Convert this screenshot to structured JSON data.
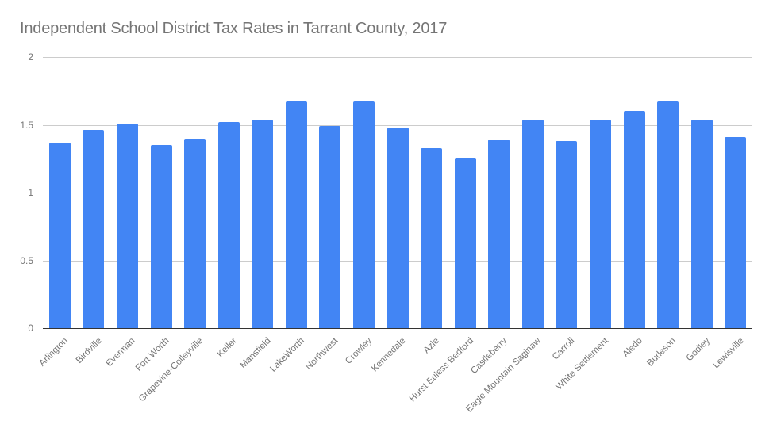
{
  "chart_data": {
    "type": "bar",
    "title": "Independent School District Tax Rates in Tarrant County, 2017",
    "xlabel": "",
    "ylabel": "",
    "ylim": [
      0,
      2
    ],
    "yticks": [
      "0",
      "0.5",
      "1",
      "1.5",
      "2"
    ],
    "grid": true,
    "legend": null,
    "bar_color": "#4285f4",
    "categories": [
      "Arlington",
      "Birdville",
      "Everman",
      "Fort Worth",
      "Grapevine-Colleyville",
      "Keller",
      "Mansfield",
      "LakeWorth",
      "Northwest",
      "Crowley",
      "Kennedale",
      "Azle",
      "Hurst Euless Bedford",
      "Castleberry",
      "Eagle Mountain Saginaw",
      "Carroll",
      "White Settlement",
      "Aledo",
      "Burleson",
      "Godley",
      "Lewisville"
    ],
    "values": [
      1.37,
      1.46,
      1.51,
      1.35,
      1.4,
      1.52,
      1.54,
      1.67,
      1.49,
      1.67,
      1.48,
      1.33,
      1.26,
      1.39,
      1.54,
      1.38,
      1.54,
      1.6,
      1.67,
      1.54,
      1.41
    ]
  }
}
